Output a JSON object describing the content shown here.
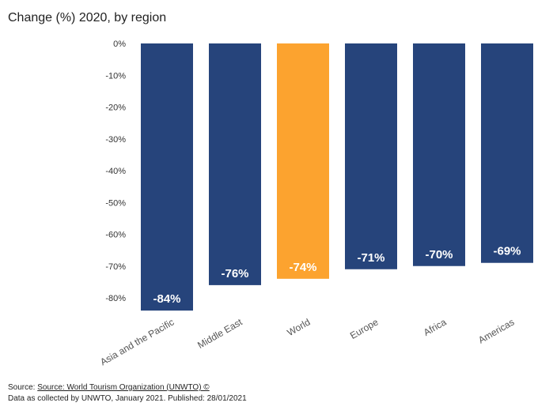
{
  "title": "Change (%) 2020, by region",
  "chart_data": {
    "type": "bar",
    "categories": [
      "Asia and the Pacific",
      "Middle East",
      "World",
      "Europe",
      "Africa",
      "Americas"
    ],
    "values": [
      -84,
      -76,
      -74,
      -71,
      -70,
      -69
    ],
    "data_labels": [
      "-84%",
      "-76%",
      "-74%",
      "-71%",
      "-70%",
      "-69%"
    ],
    "ylim": [
      -85,
      0
    ],
    "yticks": [
      0,
      -10,
      -20,
      -30,
      -40,
      -50,
      -60,
      -70,
      -80
    ],
    "ytick_labels": [
      "0%",
      "-10%",
      "-20%",
      "-30%",
      "-40%",
      "-50%",
      "-60%",
      "-70%",
      "-80%"
    ],
    "grid": false,
    "bar_colors": [
      "#26447b",
      "#26447b",
      "#fca32f",
      "#26447b",
      "#26447b",
      "#26447b"
    ],
    "label_color": "#ffffff"
  },
  "footer": {
    "source_prefix": "Source: ",
    "source_link": "Source: World Tourism Organization (UNWTO) ©",
    "note": "Data as collected by UNWTO, January 2021. Published: 28/01/2021"
  }
}
